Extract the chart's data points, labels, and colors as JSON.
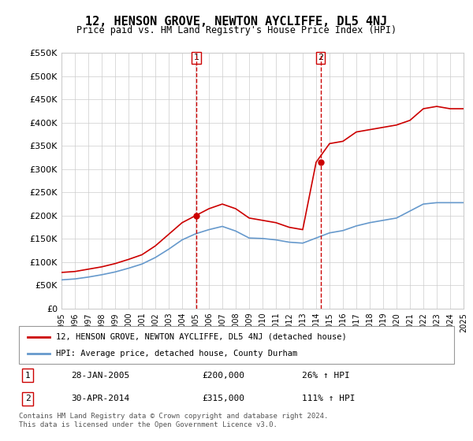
{
  "title": "12, HENSON GROVE, NEWTON AYCLIFFE, DL5 4NJ",
  "subtitle": "Price paid vs. HM Land Registry's House Price Index (HPI)",
  "legend_label_red": "12, HENSON GROVE, NEWTON AYCLIFFE, DL5 4NJ (detached house)",
  "legend_label_blue": "HPI: Average price, detached house, County Durham",
  "sale1_label": "1",
  "sale2_label": "2",
  "sale1_date": "28-JAN-2005",
  "sale1_price": "£200,000",
  "sale1_hpi": "26% ↑ HPI",
  "sale2_date": "30-APR-2014",
  "sale2_price": "£315,000",
  "sale2_hpi": "111% ↑ HPI",
  "footer1": "Contains HM Land Registry data © Crown copyright and database right 2024.",
  "footer2": "This data is licensed under the Open Government Licence v3.0.",
  "ylim": [
    0,
    550000
  ],
  "yticks": [
    0,
    50000,
    100000,
    150000,
    200000,
    250000,
    300000,
    350000,
    400000,
    450000,
    500000,
    550000
  ],
  "ytick_labels": [
    "£0",
    "£50K",
    "£100K",
    "£150K",
    "£200K",
    "£250K",
    "£300K",
    "£350K",
    "£400K",
    "£450K",
    "£500K",
    "£550K"
  ],
  "sale1_x": 2005.07,
  "sale2_x": 2014.33,
  "red_color": "#cc0000",
  "blue_color": "#6699cc",
  "vline_color": "#cc0000",
  "grid_color": "#cccccc",
  "background_color": "#ffffff",
  "years": [
    1995,
    1996,
    1997,
    1998,
    1999,
    2000,
    2001,
    2002,
    2003,
    2004,
    2005,
    2006,
    2007,
    2008,
    2009,
    2010,
    2011,
    2012,
    2013,
    2014,
    2015,
    2016,
    2017,
    2018,
    2019,
    2020,
    2021,
    2022,
    2023,
    2024,
    2025
  ],
  "red_values": [
    78000,
    80000,
    85000,
    90000,
    97000,
    106000,
    116000,
    135000,
    160000,
    185000,
    200000,
    215000,
    225000,
    215000,
    195000,
    190000,
    185000,
    175000,
    170000,
    315000,
    355000,
    360000,
    380000,
    385000,
    390000,
    395000,
    405000,
    430000,
    435000,
    430000,
    430000
  ],
  "blue_values": [
    62000,
    64000,
    68000,
    73000,
    79000,
    87000,
    96000,
    110000,
    128000,
    148000,
    161000,
    170000,
    177000,
    167000,
    152000,
    151000,
    148000,
    143000,
    141000,
    152000,
    163000,
    168000,
    178000,
    185000,
    190000,
    195000,
    210000,
    225000,
    228000,
    228000,
    228000
  ]
}
